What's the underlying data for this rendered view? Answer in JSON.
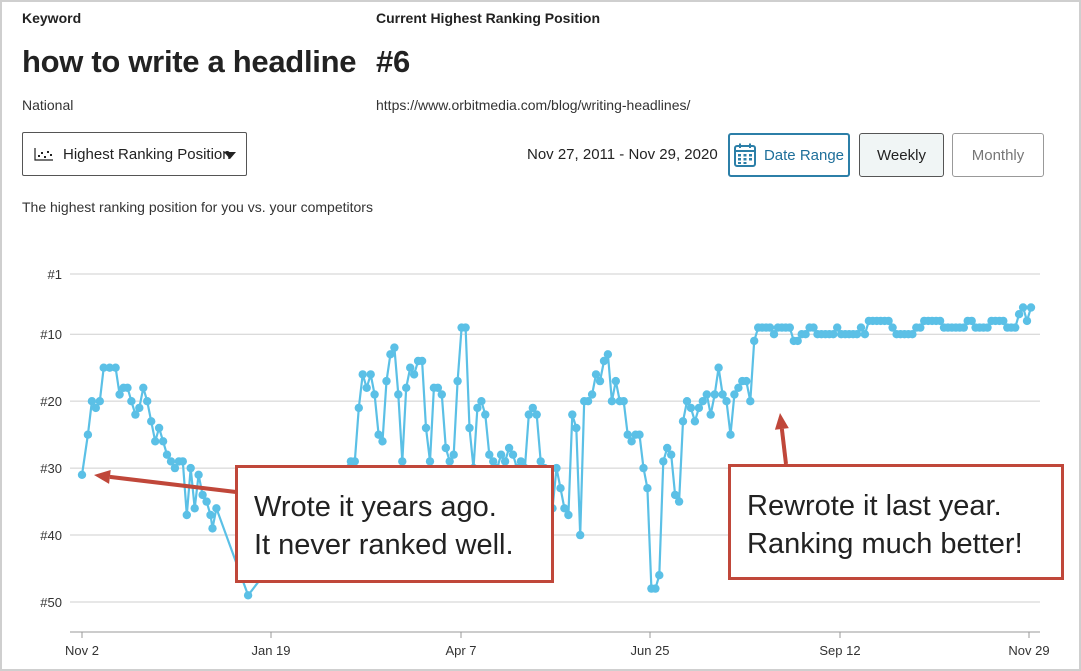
{
  "header": {
    "keyword_label": "Keyword",
    "keyword": "how to write a headline",
    "region": "National",
    "position_label": "Current Highest Ranking Position",
    "position": "#6",
    "url": "https://www.orbitmedia.com/blog/writing-headlines/"
  },
  "controls": {
    "metric_select": "Highest Ranking Position",
    "date_range_text": "Nov 27, 2011 - Nov 29, 2020",
    "date_range_button": "Date Range",
    "weekly_button": "Weekly",
    "monthly_button": "Monthly"
  },
  "description": "The highest ranking position for you vs. your competitors",
  "colors": {
    "line": "#5bc0e6",
    "callout_border": "#c0473a",
    "arrow": "#c0473a",
    "accent": "#2c7fa8"
  },
  "callouts": {
    "left": [
      "Wrote it years ago.",
      "It never ranked well."
    ],
    "right": [
      "Rewrote it last year.",
      "Ranking much better!"
    ]
  },
  "chart_data": {
    "type": "line",
    "x_tick_labels": [
      "Nov 2",
      "Jan 19",
      "Apr 7",
      "Jun 25",
      "Sep 12",
      "Nov 29"
    ],
    "y_tick_labels": [
      "#1",
      "#10",
      "#20",
      "#30",
      "#40",
      "#50"
    ],
    "y_ticks": [
      1,
      10,
      20,
      30,
      40,
      50
    ],
    "ylim": [
      1,
      55
    ],
    "y_inverted": true,
    "grid": true,
    "series": [
      {
        "points": [
          [
            0,
            31
          ],
          [
            1.5,
            25
          ],
          [
            2.5,
            20
          ],
          [
            3.5,
            21
          ],
          [
            4.5,
            20
          ],
          [
            5.5,
            15
          ],
          [
            7,
            15
          ],
          [
            8.5,
            15
          ],
          [
            9.5,
            19
          ],
          [
            10.5,
            18
          ],
          [
            11.5,
            18
          ],
          [
            12.5,
            20
          ],
          [
            13.5,
            22
          ],
          [
            14.5,
            21
          ],
          [
            15.5,
            18
          ],
          [
            16.5,
            20
          ],
          [
            17.5,
            23
          ],
          [
            18.5,
            26
          ],
          [
            19.5,
            24
          ],
          [
            20.5,
            26
          ],
          [
            21.5,
            28
          ],
          [
            22.5,
            29
          ],
          [
            23.5,
            30
          ],
          [
            24.5,
            29
          ],
          [
            25.5,
            29
          ],
          [
            26.5,
            37
          ],
          [
            27.5,
            30
          ],
          [
            28.5,
            36
          ],
          [
            29.5,
            31
          ],
          [
            30.5,
            34
          ],
          [
            31.5,
            35
          ],
          [
            32.5,
            37
          ],
          [
            33,
            39
          ],
          [
            34,
            36
          ],
          [
            42,
            49
          ],
          [
            68,
            29
          ],
          [
            69,
            29
          ],
          [
            70,
            21
          ],
          [
            71,
            16
          ],
          [
            72,
            18
          ],
          [
            73,
            16
          ],
          [
            74,
            19
          ],
          [
            75,
            25
          ],
          [
            76,
            26
          ],
          [
            77,
            17
          ],
          [
            78,
            13
          ],
          [
            79,
            12
          ],
          [
            80,
            19
          ],
          [
            81,
            29
          ],
          [
            82,
            18
          ],
          [
            83,
            15
          ],
          [
            84,
            16
          ],
          [
            85,
            14
          ],
          [
            86,
            14
          ],
          [
            87,
            24
          ],
          [
            88,
            29
          ],
          [
            89,
            18
          ],
          [
            90,
            18
          ],
          [
            91,
            19
          ],
          [
            92,
            27
          ],
          [
            93,
            29
          ],
          [
            94,
            28
          ],
          [
            95,
            17
          ],
          [
            96,
            9
          ],
          [
            97,
            9
          ],
          [
            98,
            24
          ],
          [
            99,
            30
          ],
          [
            100,
            21
          ],
          [
            101,
            20
          ],
          [
            102,
            22
          ],
          [
            103,
            28
          ],
          [
            104,
            29
          ],
          [
            105,
            30
          ],
          [
            106,
            28
          ],
          [
            107,
            29
          ],
          [
            108,
            27
          ],
          [
            109,
            28
          ],
          [
            110,
            30
          ],
          [
            111,
            29
          ],
          [
            112,
            30
          ],
          [
            113,
            22
          ],
          [
            114,
            21
          ],
          [
            115,
            22
          ],
          [
            116,
            29
          ],
          [
            117,
            30
          ],
          [
            118,
            33
          ],
          [
            119,
            36
          ],
          [
            120,
            30
          ],
          [
            121,
            33
          ],
          [
            122,
            36
          ],
          [
            123,
            37
          ],
          [
            124,
            22
          ],
          [
            125,
            24
          ],
          [
            126,
            40
          ],
          [
            127,
            20
          ],
          [
            128,
            20
          ],
          [
            129,
            19
          ],
          [
            130,
            16
          ],
          [
            131,
            17
          ],
          [
            132,
            14
          ],
          [
            133,
            13
          ],
          [
            134,
            20
          ],
          [
            135,
            17
          ],
          [
            136,
            20
          ],
          [
            137,
            20
          ],
          [
            138,
            25
          ],
          [
            139,
            26
          ],
          [
            140,
            25
          ],
          [
            141,
            25
          ],
          [
            142,
            30
          ],
          [
            143,
            33
          ],
          [
            144,
            48
          ],
          [
            145,
            48
          ],
          [
            146,
            46
          ],
          [
            147,
            29
          ],
          [
            148,
            27
          ],
          [
            149,
            28
          ],
          [
            150,
            34
          ],
          [
            151,
            35
          ],
          [
            152,
            23
          ],
          [
            153,
            20
          ],
          [
            154,
            21
          ],
          [
            155,
            23
          ],
          [
            156,
            21
          ],
          [
            157,
            20
          ],
          [
            158,
            19
          ],
          [
            159,
            22
          ],
          [
            160,
            19
          ],
          [
            161,
            15
          ],
          [
            162,
            19
          ],
          [
            163,
            20
          ],
          [
            164,
            25
          ],
          [
            165,
            19
          ],
          [
            166,
            18
          ],
          [
            167,
            17
          ],
          [
            168,
            17
          ],
          [
            169,
            20
          ],
          [
            170,
            11
          ],
          [
            171,
            9
          ],
          [
            172,
            9
          ],
          [
            173,
            9
          ],
          [
            174,
            9
          ],
          [
            175,
            10
          ],
          [
            176,
            9
          ],
          [
            177,
            9
          ],
          [
            178,
            9
          ],
          [
            179,
            9
          ],
          [
            180,
            11
          ],
          [
            181,
            11
          ],
          [
            182,
            10
          ],
          [
            183,
            10
          ],
          [
            184,
            9
          ],
          [
            185,
            9
          ],
          [
            186,
            10
          ],
          [
            187,
            10
          ],
          [
            188,
            10
          ],
          [
            189,
            10
          ],
          [
            190,
            10
          ],
          [
            191,
            9
          ],
          [
            192,
            10
          ],
          [
            193,
            10
          ],
          [
            194,
            10
          ],
          [
            195,
            10
          ],
          [
            196,
            10
          ],
          [
            197,
            9
          ],
          [
            198,
            10
          ],
          [
            199,
            8
          ],
          [
            200,
            8
          ],
          [
            201,
            8
          ],
          [
            202,
            8
          ],
          [
            203,
            8
          ],
          [
            204,
            8
          ],
          [
            205,
            9
          ],
          [
            206,
            10
          ],
          [
            207,
            10
          ],
          [
            208,
            10
          ],
          [
            209,
            10
          ],
          [
            210,
            10
          ],
          [
            211,
            9
          ],
          [
            212,
            9
          ],
          [
            213,
            8
          ],
          [
            214,
            8
          ],
          [
            215,
            8
          ],
          [
            216,
            8
          ],
          [
            217,
            8
          ],
          [
            218,
            9
          ],
          [
            219,
            9
          ],
          [
            220,
            9
          ],
          [
            221,
            9
          ],
          [
            222,
            9
          ],
          [
            223,
            9
          ],
          [
            224,
            8
          ],
          [
            225,
            8
          ],
          [
            226,
            9
          ],
          [
            227,
            9
          ],
          [
            228,
            9
          ],
          [
            229,
            9
          ],
          [
            230,
            8
          ],
          [
            231,
            8
          ],
          [
            232,
            8
          ],
          [
            233,
            8
          ],
          [
            234,
            9
          ],
          [
            235,
            9
          ],
          [
            236,
            9
          ],
          [
            237,
            7
          ],
          [
            238,
            6
          ],
          [
            239,
            8
          ],
          [
            240,
            6
          ]
        ]
      }
    ]
  }
}
